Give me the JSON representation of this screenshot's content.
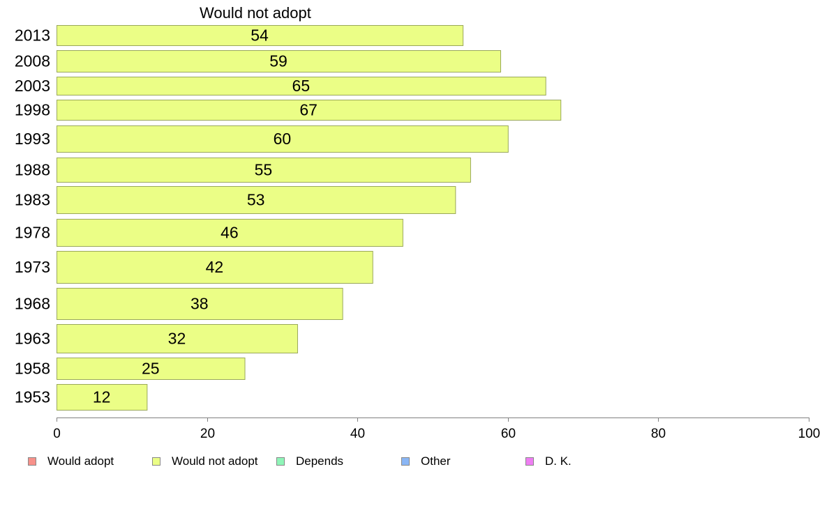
{
  "chart_data": {
    "type": "bar",
    "orientation": "horizontal",
    "series_title": "Would not adopt",
    "categories": [
      "2013",
      "2008",
      "2003",
      "1998",
      "1993",
      "1988",
      "1983",
      "1978",
      "1973",
      "1968",
      "1963",
      "1958",
      "1953"
    ],
    "series": [
      {
        "name": "Would not adopt",
        "values": [
          54,
          59,
          65,
          67,
          60,
          55,
          53,
          46,
          42,
          38,
          32,
          25,
          12
        ]
      }
    ],
    "xlim": [
      0,
      100
    ],
    "xticks": [
      0,
      20,
      40,
      60,
      80,
      100
    ],
    "xlabel": "",
    "ylabel": "",
    "grid": false,
    "legend_position": "bottom",
    "bar_color": "#ebfe86",
    "bar_border_color": "#9aa85a"
  },
  "legend": {
    "items": [
      {
        "label": "Would adopt",
        "color": "#f7918a"
      },
      {
        "label": "Would not adopt",
        "color": "#ebfe86"
      },
      {
        "label": "Depends",
        "color": "#8ff5b8"
      },
      {
        "label": "Other",
        "color": "#8ab6f5"
      },
      {
        "label": "D. K.",
        "color": "#ee7ef2"
      }
    ]
  }
}
